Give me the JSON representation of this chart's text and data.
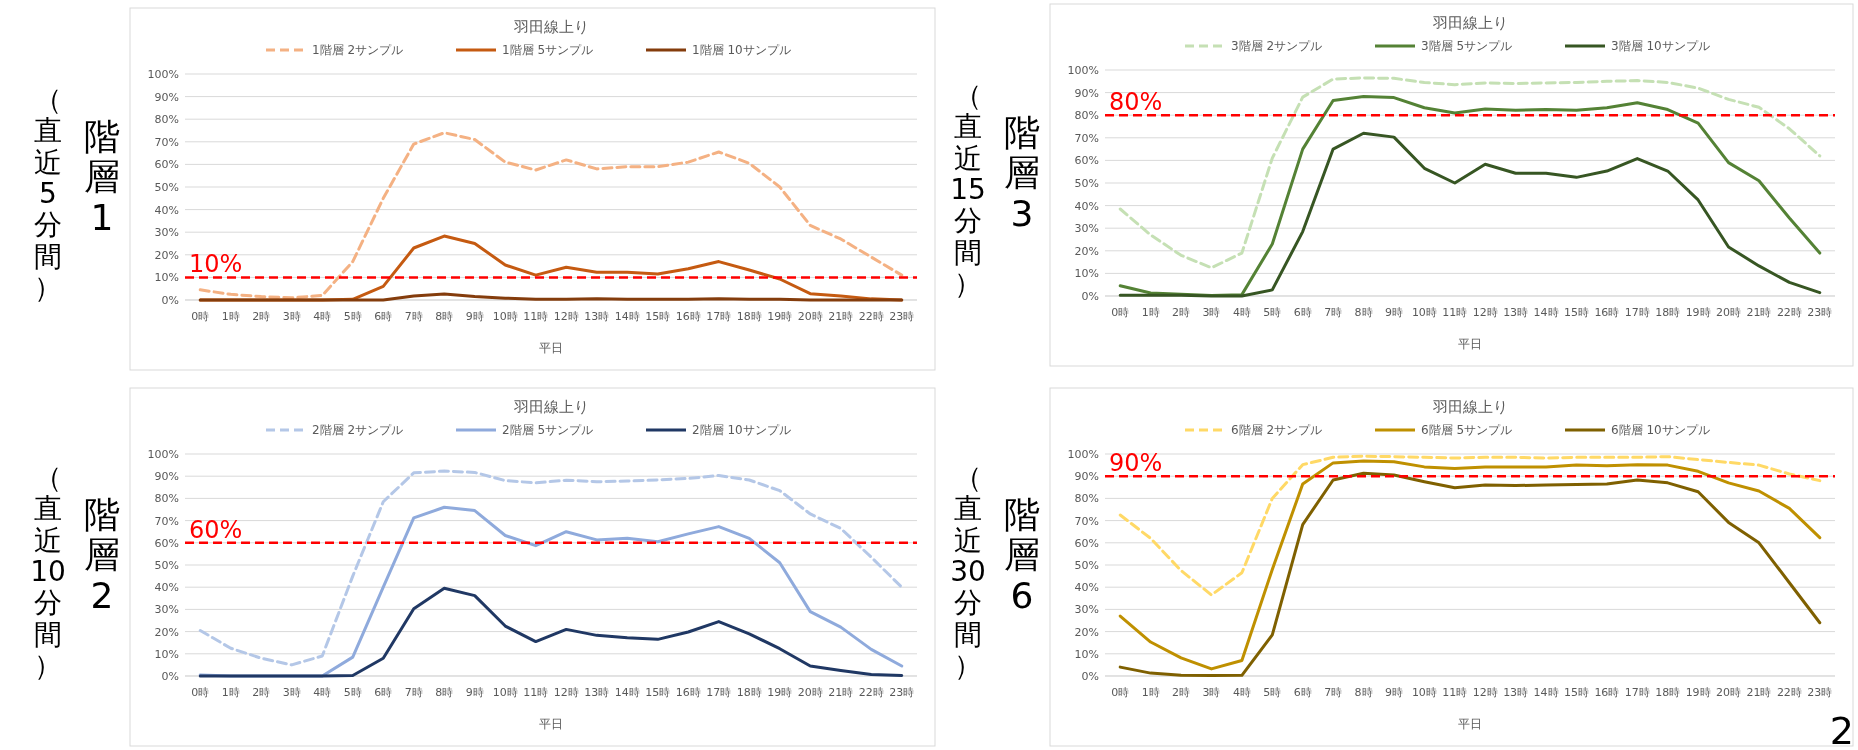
{
  "chart_data": [
    {
      "type": "line",
      "title": "羽田線上り",
      "xlabel": "平日",
      "ylabel": "階層1",
      "annotations": [
        "（直近5分間）"
      ],
      "grid": "y",
      "legend": "top",
      "categories": [
        "0時",
        "1時",
        "2時",
        "3時",
        "4時",
        "5時",
        "6時",
        "7時",
        "8時",
        "9時",
        "10時",
        "11時",
        "12時",
        "13時",
        "14時",
        "15時",
        "16時",
        "17時",
        "18時",
        "19時",
        "20時",
        "21時",
        "22時",
        "23時"
      ],
      "ylim": [
        0,
        100
      ],
      "yticks": [
        {
          "value": 0,
          "label": "0%"
        },
        {
          "value": 10,
          "label": "10%"
        },
        {
          "value": 20,
          "label": "20%"
        },
        {
          "value": 30,
          "label": "30%"
        },
        {
          "value": 40,
          "label": "40%"
        },
        {
          "value": 50,
          "label": "50%"
        },
        {
          "value": 60,
          "label": "60%"
        },
        {
          "value": 70,
          "label": "70%"
        },
        {
          "value": 80,
          "label": "80%"
        },
        {
          "value": 90,
          "label": "90%"
        },
        {
          "value": 100,
          "label": "100%"
        }
      ],
      "series": [
        {
          "name": "1階層 2サンプル",
          "color": "#f4b183",
          "line_style": "dashed",
          "values": [
            4.5,
            2.5,
            1.5,
            1,
            2,
            17,
            45,
            69,
            74,
            71,
            61,
            57.5,
            62,
            58,
            59,
            59,
            61,
            65.5,
            60.5,
            50,
            33,
            27,
            19,
            11
          ]
        },
        {
          "name": "1階層 5サンプル",
          "color": "#c55a11",
          "line_style": "solid",
          "values": [
            0,
            0,
            0,
            0,
            0,
            0.3,
            6,
            23,
            28.3,
            25,
            15.5,
            11,
            14.5,
            12.3,
            12.3,
            11.5,
            13.8,
            17,
            13.3,
            9.3,
            2.8,
            1.8,
            0.5,
            0
          ]
        },
        {
          "name": "1階層 10サンプル",
          "color": "#843c0c",
          "line_style": "solid",
          "values": [
            0,
            0,
            0,
            0,
            0,
            0,
            0,
            1.8,
            2.7,
            1.5,
            0.8,
            0.3,
            0.3,
            0.5,
            0.3,
            0.3,
            0.3,
            0.5,
            0.3,
            0.3,
            0,
            0,
            0,
            0
          ]
        }
      ],
      "ref_lines": [
        {
          "axis": "y",
          "value": 10,
          "label": "10%",
          "color": "#ff0000",
          "line_style": "dashed"
        }
      ]
    },
    {
      "type": "line",
      "title": "羽田線上り",
      "xlabel": "平日",
      "ylabel": "階層3",
      "annotations": [
        "（直近15分間）"
      ],
      "grid": "y",
      "legend": "top",
      "categories": [
        "0時",
        "1時",
        "2時",
        "3時",
        "4時",
        "5時",
        "6時",
        "7時",
        "8時",
        "9時",
        "10時",
        "11時",
        "12時",
        "13時",
        "14時",
        "15時",
        "16時",
        "17時",
        "18時",
        "19時",
        "20時",
        "21時",
        "22時",
        "23時"
      ],
      "ylim": [
        0,
        100
      ],
      "yticks": [
        {
          "value": 0,
          "label": "0%"
        },
        {
          "value": 10,
          "label": "10%"
        },
        {
          "value": 20,
          "label": "20%"
        },
        {
          "value": 30,
          "label": "30%"
        },
        {
          "value": 40,
          "label": "40%"
        },
        {
          "value": 50,
          "label": "50%"
        },
        {
          "value": 60,
          "label": "60%"
        },
        {
          "value": 70,
          "label": "70%"
        },
        {
          "value": 80,
          "label": "80%"
        },
        {
          "value": 90,
          "label": "90%"
        },
        {
          "value": 100,
          "label": "100%"
        }
      ],
      "series": [
        {
          "name": "3階層 2サンプル",
          "color": "#c5e0b4",
          "line_style": "dashed",
          "values": [
            38.5,
            27,
            18,
            12.5,
            19,
            61,
            88,
            96,
            96.5,
            96.3,
            94.5,
            93.5,
            94.3,
            94,
            94.3,
            94.5,
            95,
            95.3,
            94.5,
            92,
            87,
            83.5,
            74,
            62
          ]
        },
        {
          "name": "3階層 5サンプル",
          "color": "#548235",
          "line_style": "solid",
          "values": [
            4.5,
            1.3,
            0.8,
            0.2,
            0.6,
            23,
            65,
            86.5,
            88.3,
            87.8,
            83.3,
            81,
            82.7,
            82.2,
            82.5,
            82.2,
            83.3,
            85.5,
            82.5,
            76.5,
            59,
            51,
            34.5,
            19
          ]
        },
        {
          "name": "3階層 10サンプル",
          "color": "#375623",
          "line_style": "solid",
          "values": [
            0.3,
            0.3,
            0.3,
            0,
            0,
            2.7,
            28.5,
            65,
            72,
            70.3,
            56.5,
            50,
            58.3,
            54.3,
            54.3,
            52.5,
            55.3,
            60.8,
            55.3,
            42.5,
            21.7,
            13.3,
            6,
            1.5
          ]
        }
      ],
      "ref_lines": [
        {
          "axis": "y",
          "value": 80,
          "label": "80%",
          "color": "#ff0000",
          "line_style": "dashed"
        }
      ]
    },
    {
      "type": "line",
      "title": "羽田線上り",
      "xlabel": "平日",
      "ylabel": "階層2",
      "annotations": [
        "（直近10分間）"
      ],
      "grid": "y",
      "legend": "top",
      "categories": [
        "0時",
        "1時",
        "2時",
        "3時",
        "4時",
        "5時",
        "6時",
        "7時",
        "8時",
        "9時",
        "10時",
        "11時",
        "12時",
        "13時",
        "14時",
        "15時",
        "16時",
        "17時",
        "18時",
        "19時",
        "20時",
        "21時",
        "22時",
        "23時"
      ],
      "ylim": [
        0,
        100
      ],
      "yticks": [
        {
          "value": 0,
          "label": "0%"
        },
        {
          "value": 10,
          "label": "10%"
        },
        {
          "value": 20,
          "label": "20%"
        },
        {
          "value": 30,
          "label": "30%"
        },
        {
          "value": 40,
          "label": "40%"
        },
        {
          "value": 50,
          "label": "50%"
        },
        {
          "value": 60,
          "label": "60%"
        },
        {
          "value": 70,
          "label": "70%"
        },
        {
          "value": 80,
          "label": "80%"
        },
        {
          "value": 90,
          "label": "90%"
        },
        {
          "value": 100,
          "label": "100%"
        }
      ],
      "series": [
        {
          "name": "2階層 2サンプル",
          "color": "#b4c7e7",
          "line_style": "dashed",
          "values": [
            20.5,
            12.5,
            8,
            5,
            9,
            45,
            78.5,
            91.5,
            92.3,
            91.7,
            88,
            87,
            88.2,
            87.5,
            87.8,
            88.3,
            89,
            90.3,
            88.3,
            83.5,
            73,
            66.5,
            53.5,
            40
          ]
        },
        {
          "name": "2階層 5サンプル",
          "color": "#8faadc",
          "line_style": "solid",
          "values": [
            0.5,
            0,
            0,
            0,
            0,
            8.5,
            40,
            71.2,
            76,
            74.5,
            63.3,
            58.7,
            65,
            61.3,
            62,
            60.5,
            64,
            67.3,
            62,
            51,
            29,
            22,
            12,
            4.5
          ]
        },
        {
          "name": "2階層 10サンプル",
          "color": "#203864",
          "line_style": "solid",
          "values": [
            0,
            0,
            0,
            0,
            0,
            0.2,
            8,
            30.3,
            39.5,
            36.2,
            22.5,
            15.5,
            21,
            18.3,
            17.2,
            16.5,
            19.8,
            24.5,
            19,
            12.3,
            4.5,
            2.5,
            0.7,
            0.2
          ]
        }
      ],
      "ref_lines": [
        {
          "axis": "y",
          "value": 60,
          "label": "60%",
          "color": "#ff0000",
          "line_style": "dashed"
        }
      ]
    },
    {
      "type": "line",
      "title": "羽田線上り",
      "xlabel": "平日",
      "ylabel": "階層6",
      "annotations": [
        "（直近30分間）",
        "2"
      ],
      "grid": "y",
      "legend": "top",
      "categories": [
        "0時",
        "1時",
        "2時",
        "3時",
        "4時",
        "5時",
        "6時",
        "7時",
        "8時",
        "9時",
        "10時",
        "11時",
        "12時",
        "13時",
        "14時",
        "15時",
        "16時",
        "17時",
        "18時",
        "19時",
        "20時",
        "21時",
        "22時",
        "23時"
      ],
      "ylim": [
        0,
        100
      ],
      "yticks": [
        {
          "value": 0,
          "label": "0%"
        },
        {
          "value": 10,
          "label": "10%"
        },
        {
          "value": 20,
          "label": "20%"
        },
        {
          "value": 30,
          "label": "30%"
        },
        {
          "value": 40,
          "label": "40%"
        },
        {
          "value": 50,
          "label": "50%"
        },
        {
          "value": 60,
          "label": "60%"
        },
        {
          "value": 70,
          "label": "70%"
        },
        {
          "value": 80,
          "label": "80%"
        },
        {
          "value": 90,
          "label": "90%"
        },
        {
          "value": 100,
          "label": "100%"
        }
      ],
      "series": [
        {
          "name": "6階層 2サンプル",
          "color": "#ffd966",
          "line_style": "dashed",
          "values": [
            72.5,
            62,
            47.5,
            36.5,
            46.5,
            80,
            95.2,
            98.5,
            99,
            98.8,
            98.5,
            98.2,
            98.5,
            98.5,
            98.2,
            98.5,
            98.5,
            98.5,
            98.8,
            97.5,
            96.2,
            95,
            91,
            88
          ]
        },
        {
          "name": "6階層 5サンプル",
          "color": "#bf9000",
          "line_style": "solid",
          "values": [
            27,
            15.3,
            8.2,
            3.2,
            7,
            48,
            86.5,
            96,
            96.8,
            96.5,
            94.2,
            93.5,
            94.2,
            94.2,
            94.2,
            95,
            94.7,
            95.2,
            95,
            92.2,
            87,
            83.3,
            75.5,
            62.3
          ]
        },
        {
          "name": "6階層 10サンプル",
          "color": "#7f6000",
          "line_style": "solid",
          "values": [
            4,
            1.3,
            0.3,
            0.2,
            0.3,
            18.5,
            68.2,
            88.3,
            91.3,
            90.5,
            87.5,
            84.8,
            86,
            85.8,
            86,
            86.3,
            86.5,
            88.3,
            87,
            83,
            69.2,
            60,
            42,
            24
          ]
        }
      ],
      "ref_lines": [
        {
          "axis": "y",
          "value": 90,
          "label": "90%",
          "color": "#ff0000",
          "line_style": "dashed"
        }
      ]
    }
  ]
}
